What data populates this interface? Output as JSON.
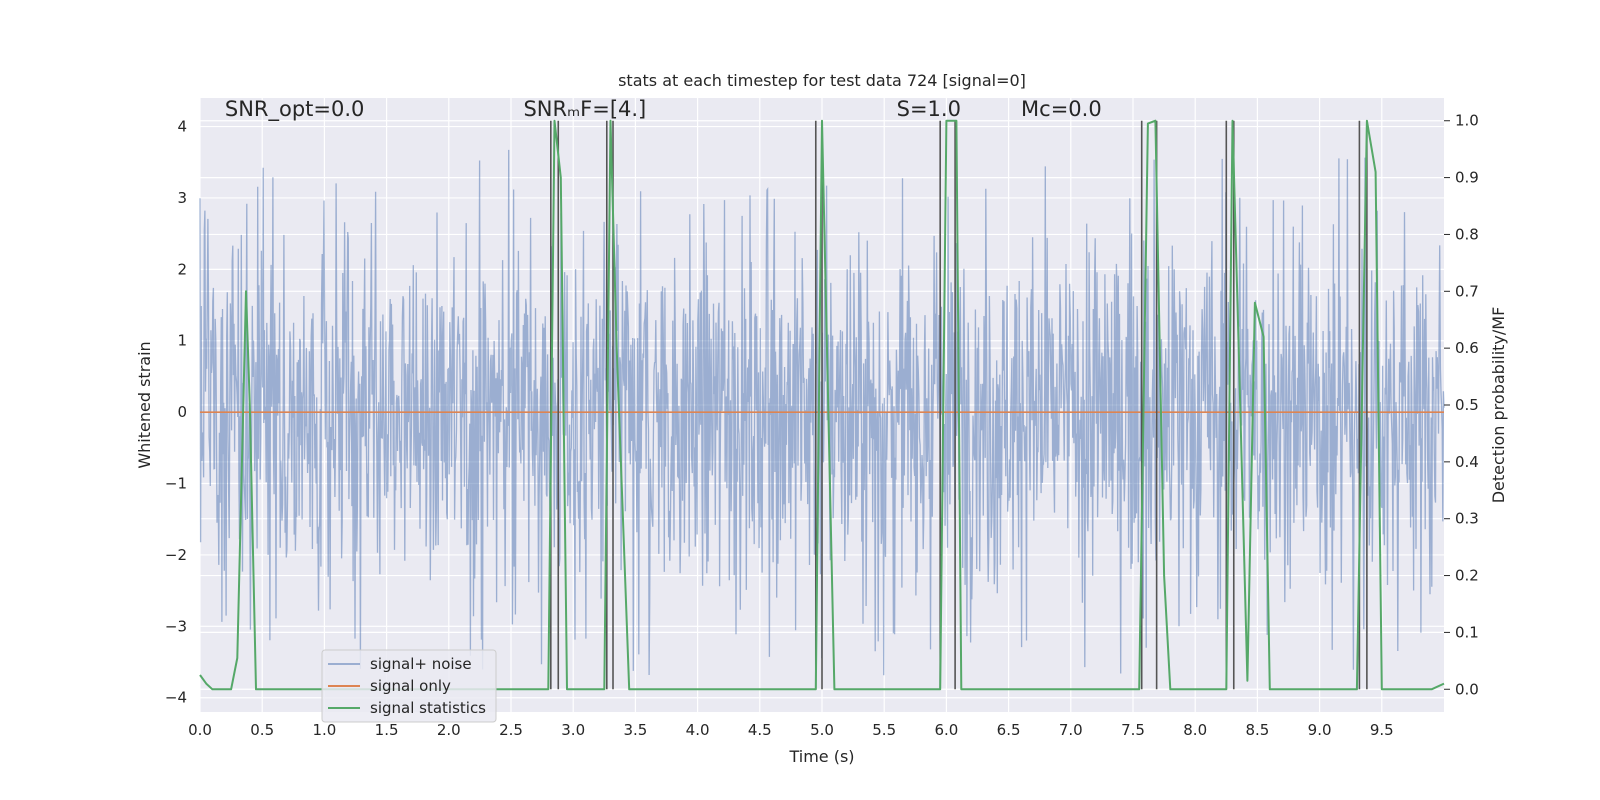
{
  "chart_data": {
    "type": "line",
    "title": "stats at each timestep for test data 724 [signal=0]",
    "xlabel": "Time (s)",
    "ylabel": "Whitened strain",
    "ylabel_right": "Detection probability/MF",
    "xlim": [
      0,
      10
    ],
    "ylim": [
      -4.2,
      4.4
    ],
    "ylim_right": [
      -0.04,
      1.04
    ],
    "x_ticks": [
      0.0,
      0.5,
      1.0,
      1.5,
      2.0,
      2.5,
      3.0,
      3.5,
      4.0,
      4.5,
      5.0,
      5.5,
      6.0,
      6.5,
      7.0,
      7.5,
      8.0,
      8.5,
      9.0,
      9.5
    ],
    "x_tick_labels": [
      "0.0",
      "0.5",
      "1.0",
      "1.5",
      "2.0",
      "2.5",
      "3.0",
      "3.5",
      "4.0",
      "4.5",
      "5.0",
      "5.5",
      "6.0",
      "6.5",
      "7.0",
      "7.5",
      "8.0",
      "8.5",
      "9.0",
      "9.5"
    ],
    "y_ticks": [
      -4,
      -3,
      -2,
      -1,
      0,
      1,
      2,
      3,
      4
    ],
    "y_tick_labels": [
      "−4",
      "−3",
      "−2",
      "−1",
      "0",
      "1",
      "2",
      "3",
      "4"
    ],
    "y_right_ticks": [
      0.0,
      0.1,
      0.2,
      0.3,
      0.4,
      0.5,
      0.6,
      0.7,
      0.8,
      0.9,
      1.0
    ],
    "y_right_tick_labels": [
      "0.0",
      "0.1",
      "0.2",
      "0.3",
      "0.4",
      "0.5",
      "0.6",
      "0.7",
      "0.8",
      "0.9",
      "1.0"
    ],
    "grid": true,
    "legend_position": "bottom-left",
    "annotations": [
      {
        "id": "snr-opt",
        "text": "SNR_opt=0.0",
        "x": 0.2,
        "y": 4.15
      },
      {
        "id": "snr-mf",
        "text": "SNRₘF=[4.]",
        "x": 2.6,
        "y": 4.15
      },
      {
        "id": "s-stat",
        "text": "S=1.0",
        "x": 5.6,
        "y": 4.15
      },
      {
        "id": "mc",
        "text": "Mᴄ=0.0",
        "x": 6.6,
        "y": 4.15
      }
    ],
    "series": [
      {
        "name": "signal+ noise",
        "color": "#4c72b0",
        "opacity": 0.5,
        "kind": "noise",
        "x_range": [
          0,
          10
        ],
        "sample_count": 2048,
        "typical_amplitude": 2.2,
        "peak_max": 3.8,
        "peak_min": -3.75
      },
      {
        "name": "signal only",
        "color": "#dd8452",
        "x": [
          0,
          10
        ],
        "y": [
          0,
          0
        ]
      },
      {
        "name": "signal statistics",
        "color": "#55a868",
        "axis": "right",
        "x": [
          0.0,
          0.05,
          0.1,
          0.25,
          0.3,
          0.37,
          0.4,
          0.45,
          2.8,
          2.85,
          2.9,
          2.95,
          3.25,
          3.3,
          3.35,
          3.45,
          4.95,
          5.0,
          5.05,
          5.1,
          5.3,
          5.95,
          6.0,
          6.08,
          6.12,
          7.55,
          7.62,
          7.68,
          7.75,
          7.8,
          8.25,
          8.3,
          8.35,
          8.42,
          8.48,
          8.55,
          8.6,
          9.3,
          9.38,
          9.45,
          9.5,
          9.9,
          10.0
        ],
        "y": [
          0.025,
          0.01,
          0.0,
          0.0,
          0.055,
          0.7,
          0.5,
          0.0,
          0.0,
          1.0,
          0.9,
          0.0,
          0.0,
          1.0,
          0.6,
          0.0,
          0.0,
          1.0,
          0.5,
          0.0,
          0.0,
          0.0,
          1.0,
          1.0,
          0.0,
          0.0,
          0.995,
          1.0,
          0.2,
          0.0,
          0.0,
          1.0,
          0.6,
          0.015,
          0.68,
          0.62,
          0.0,
          0.0,
          1.0,
          0.91,
          0.0,
          0.0,
          0.01
        ]
      }
    ],
    "detection_markers": {
      "color": "#555555",
      "x": [
        2.82,
        2.88,
        3.27,
        3.32,
        4.95,
        5.0,
        5.95,
        6.07,
        7.57,
        7.69,
        8.25,
        8.31,
        9.32,
        9.38
      ]
    }
  }
}
